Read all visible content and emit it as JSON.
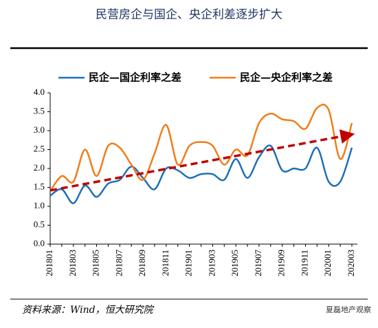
{
  "chart_data": {
    "type": "line",
    "title": "民营房企与国企、央企利差逐步扩大",
    "source": "资料来源：Wind，恒大研究院",
    "watermark": "夏磊地产观察",
    "categories": [
      "201801",
      null,
      "201803",
      null,
      "201805",
      null,
      "201807",
      null,
      "201809",
      null,
      "201811",
      null,
      "201901",
      null,
      "201903",
      null,
      "201905",
      null,
      "201907",
      null,
      "201909",
      null,
      "201911",
      null,
      "202001",
      null,
      "202003"
    ],
    "series": [
      {
        "name": "民企—国企利率之差",
        "color": "#1f6fb8",
        "values": [
          1.28,
          1.45,
          1.08,
          1.55,
          1.25,
          1.6,
          1.7,
          2.05,
          1.75,
          1.45,
          2.0,
          1.95,
          1.75,
          1.85,
          1.85,
          1.7,
          2.25,
          1.75,
          2.3,
          2.6,
          1.95,
          2.0,
          2.0,
          2.55,
          1.65,
          1.65,
          2.55
        ]
      },
      {
        "name": "民企—央企利率之差",
        "color": "#f07d1a",
        "values": [
          1.4,
          1.8,
          1.65,
          2.5,
          1.8,
          2.6,
          2.55,
          2.1,
          1.7,
          2.4,
          3.15,
          2.1,
          2.6,
          2.7,
          2.6,
          2.1,
          2.5,
          2.35,
          3.2,
          3.45,
          3.3,
          3.25,
          3.05,
          3.6,
          3.55,
          2.25,
          3.2
        ]
      }
    ],
    "trend": {
      "color": "#c00000",
      "values": [
        1.42,
        2.88
      ]
    },
    "ylim": [
      0,
      4
    ],
    "yticks": [
      {
        "value": 0,
        "label": "0.0"
      },
      0.5,
      {
        "value": 1,
        "label": "1.0"
      },
      1.5,
      {
        "value": 2,
        "label": "2.0"
      },
      2.5,
      {
        "value": 3,
        "label": "3.0"
      },
      3.5,
      {
        "value": 4,
        "label": "4.0"
      }
    ],
    "legend": "top",
    "grid": false
  }
}
